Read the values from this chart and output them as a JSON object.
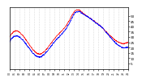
{
  "bg_color": "#ffffff",
  "line_color_temp": "#ff0000",
  "line_color_wc": "#0000ff",
  "ylim": [
    0,
    58
  ],
  "ytick_values": [
    5,
    10,
    15,
    20,
    25,
    30,
    35,
    40,
    45,
    50
  ],
  "ytick_labels": [
    "5",
    "10",
    "15",
    "20",
    "25",
    "30",
    "35",
    "40",
    "45",
    "50"
  ],
  "num_points": 1440,
  "grid_color": "#bbbbbb",
  "linewidth": 0.5,
  "dot_size": 0.3,
  "xlim": [
    0,
    1440
  ],
  "xtick_interval": 60
}
